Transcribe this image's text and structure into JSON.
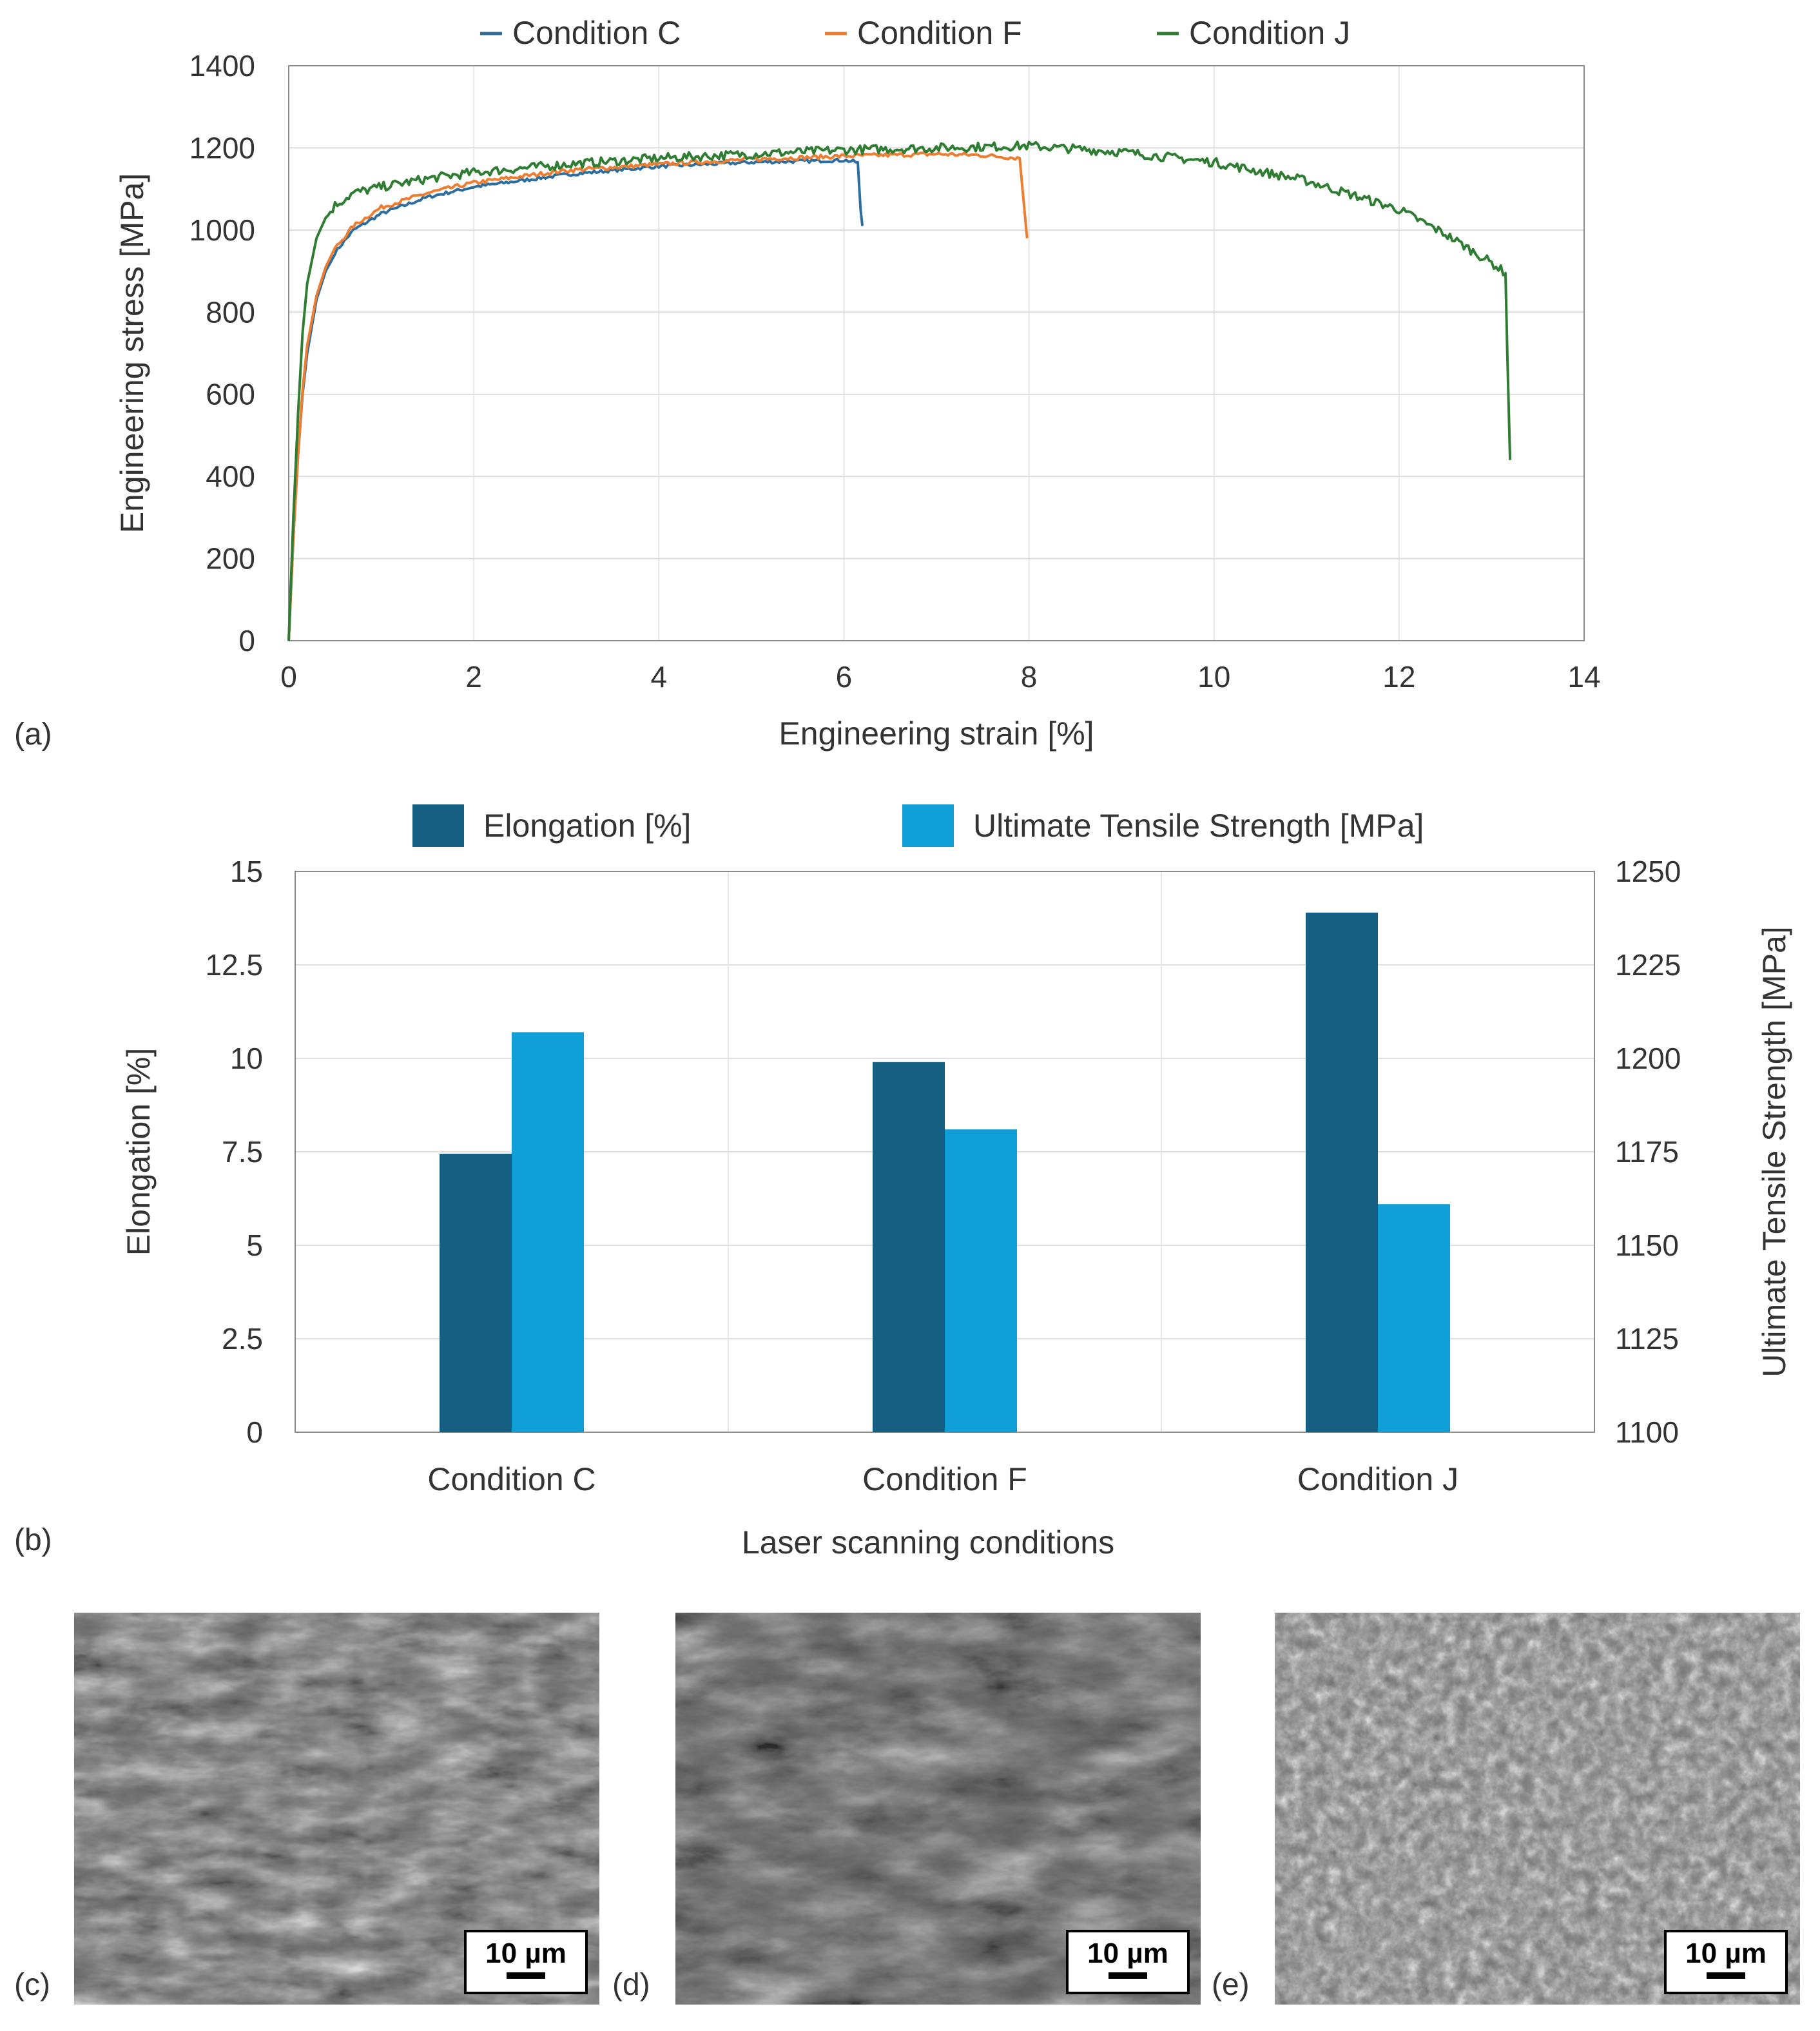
{
  "chart_data": [
    {
      "panel_label": "(a)",
      "type": "line",
      "xlabel": "Engineering strain [%]",
      "ylabel": "Engineering stress [MPa]",
      "xlim": [
        0,
        14
      ],
      "ylim": [
        0,
        1400
      ],
      "x_ticks": [
        "0",
        "2",
        "4",
        "6",
        "8",
        "10",
        "12",
        "14"
      ],
      "y_ticks": [
        "0",
        "200",
        "400",
        "600",
        "800",
        "1000",
        "1200",
        "1400"
      ],
      "grid": true,
      "legend_position": "top",
      "series": [
        {
          "name": "Condition C",
          "color": "#2e6e9e",
          "points": [
            [
              0,
              0
            ],
            [
              0.05,
              250
            ],
            [
              0.1,
              450
            ],
            [
              0.15,
              600
            ],
            [
              0.2,
              700
            ],
            [
              0.3,
              830
            ],
            [
              0.4,
              900
            ],
            [
              0.5,
              945
            ],
            [
              0.7,
              1000
            ],
            [
              1,
              1040
            ],
            [
              1.5,
              1080
            ],
            [
              2,
              1105
            ],
            [
              3,
              1135
            ],
            [
              4,
              1155
            ],
            [
              5,
              1165
            ],
            [
              6,
              1170
            ],
            [
              6.15,
              1165
            ],
            [
              6.18,
              1050
            ],
            [
              6.2,
              1010
            ]
          ]
        },
        {
          "name": "Condition F",
          "color": "#ed7d31",
          "points": [
            [
              0,
              0
            ],
            [
              0.05,
              250
            ],
            [
              0.1,
              450
            ],
            [
              0.15,
              610
            ],
            [
              0.2,
              720
            ],
            [
              0.3,
              840
            ],
            [
              0.4,
              910
            ],
            [
              0.5,
              955
            ],
            [
              0.7,
              1010
            ],
            [
              1,
              1055
            ],
            [
              1.5,
              1090
            ],
            [
              2,
              1115
            ],
            [
              3,
              1145
            ],
            [
              4,
              1160
            ],
            [
              5,
              1172
            ],
            [
              6,
              1180
            ],
            [
              7,
              1185
            ],
            [
              7.5,
              1182
            ],
            [
              7.9,
              1175
            ],
            [
              7.93,
              1100
            ],
            [
              7.98,
              980
            ]
          ]
        },
        {
          "name": "Condition J",
          "color": "#2e7d32",
          "points": [
            [
              0,
              0
            ],
            [
              0.05,
              300
            ],
            [
              0.1,
              550
            ],
            [
              0.15,
              750
            ],
            [
              0.2,
              870
            ],
            [
              0.3,
              980
            ],
            [
              0.4,
              1030
            ],
            [
              0.5,
              1060
            ],
            [
              0.7,
              1090
            ],
            [
              1,
              1105
            ],
            [
              1.5,
              1125
            ],
            [
              2,
              1140
            ],
            [
              3,
              1160
            ],
            [
              4,
              1175
            ],
            [
              5,
              1185
            ],
            [
              6,
              1195
            ],
            [
              7,
              1200
            ],
            [
              8,
              1205
            ],
            [
              9,
              1190
            ],
            [
              10,
              1165
            ],
            [
              11,
              1120
            ],
            [
              12,
              1050
            ],
            [
              12.5,
              990
            ],
            [
              13,
              920
            ],
            [
              13.15,
              895
            ],
            [
              13.17,
              700
            ],
            [
              13.2,
              440
            ]
          ]
        }
      ]
    },
    {
      "panel_label": "(b)",
      "type": "bar",
      "xlabel": "Laser scanning conditions",
      "ylabel": "Elongation [%]",
      "y2label": "Ultimate Tensile Strength [MPa]",
      "categories": [
        "Condition C",
        "Condition F",
        "Condition J"
      ],
      "ylim": [
        0,
        15
      ],
      "y2lim": [
        1100,
        1250
      ],
      "y_ticks": [
        "0",
        "2.5",
        "5",
        "7.5",
        "10",
        "12.5",
        "15"
      ],
      "y2_ticks": [
        "1100",
        "1125",
        "1150",
        "1175",
        "1200",
        "1225",
        "1250"
      ],
      "legend_position": "top",
      "series": [
        {
          "name": "Elongation [%]",
          "axis": "left",
          "color": "#145f82",
          "values": [
            7.45,
            9.9,
            13.9
          ]
        },
        {
          "name": "Ultimate Tensile Strength [MPa]",
          "axis": "right",
          "color": "#0f9ed5",
          "values": [
            1207,
            1181,
            1161
          ]
        }
      ]
    }
  ],
  "micrographs": [
    {
      "panel_label": "(c)",
      "scale_bar": "10 µm"
    },
    {
      "panel_label": "(d)",
      "scale_bar": "10 µm"
    },
    {
      "panel_label": "(e)",
      "scale_bar": "10 µm"
    }
  ]
}
